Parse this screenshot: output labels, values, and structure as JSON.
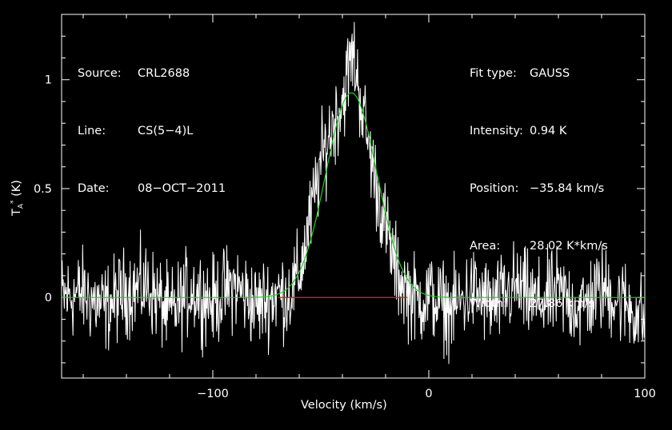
{
  "info_left": {
    "source_label": "Source:",
    "source_value": "CRL2688",
    "line_label": "Line:",
    "line_value": "CS(5−4)L",
    "date_label": "Date:",
    "date_value": "08−OCT−2011"
  },
  "info_right": {
    "fit_type_label": "Fit type:",
    "fit_type_value": "GAUSS",
    "intensity_label": "Intensity:",
    "intensity_value": "0.94 K",
    "position_label": "Position:",
    "position_value": "−35.84 km/s",
    "area_label": "Area:",
    "area_value": "28.02 K*km/s",
    "width_label": "Width:",
    "width_value": "27.86 km/s"
  },
  "axes": {
    "xlabel": "Velocity (km/s)",
    "ylabel_main": "T",
    "ylabel_sub": "A",
    "ylabel_sup": "*",
    "ylabel_unit": " (K)"
  },
  "chart_data": {
    "type": "line",
    "xlabel": "Velocity (km/s)",
    "ylabel": "TA* (K)",
    "xlim": [
      -170,
      100
    ],
    "ylim": [
      -0.37,
      1.3
    ],
    "x_ticks": [
      -100,
      0,
      100
    ],
    "x_tick_labels": [
      "−100",
      "0",
      "100"
    ],
    "y_ticks": [
      0,
      0.5,
      1
    ],
    "y_tick_labels": [
      "0",
      "0.5",
      "1"
    ],
    "grid": false,
    "series": [
      {
        "role": "spectrum",
        "color": "#ffffff",
        "x": [
          -170,
          -160,
          -150,
          -140,
          -130,
          -120,
          -110,
          -100,
          -90,
          -80,
          -70,
          -65,
          -60,
          -55,
          -50,
          -45,
          -40,
          -37,
          -35,
          -33,
          -30,
          -25,
          -20,
          -15,
          -10,
          -5,
          0,
          10,
          20,
          30,
          40,
          50,
          60,
          70,
          80,
          90,
          100
        ],
        "y": [
          0.0,
          0.02,
          -0.05,
          0.03,
          0.05,
          -0.08,
          0.04,
          -0.02,
          0.06,
          -0.04,
          0.02,
          0.01,
          0.1,
          0.35,
          0.62,
          0.78,
          0.9,
          1.05,
          1.12,
          1.0,
          0.82,
          0.55,
          0.32,
          0.12,
          0.03,
          -0.02,
          0.01,
          -0.06,
          0.03,
          -0.04,
          0.05,
          -0.03,
          0.02,
          -0.05,
          0.04,
          -0.02,
          -0.1
        ]
      },
      {
        "role": "gaussian-fit",
        "color": "#22cc22",
        "amplitude": 0.94,
        "center": -35.84,
        "fwhm": 27.86
      },
      {
        "role": "baseline-window",
        "color": "#cc2222",
        "x": [
          -70,
          -10
        ],
        "y": [
          0,
          0
        ]
      }
    ]
  }
}
